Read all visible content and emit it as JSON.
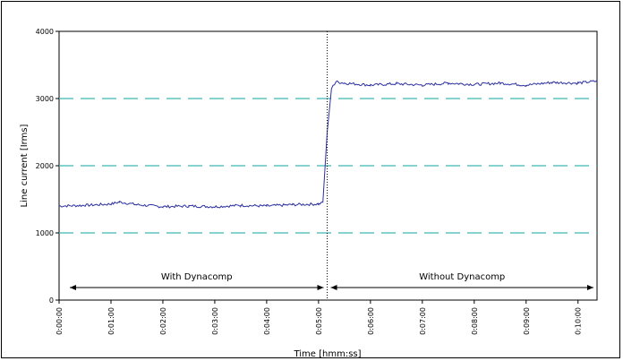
{
  "chart_data": {
    "type": "line",
    "xlabel": "Time [hmm:ss]",
    "ylabel": "Line current [Irms]",
    "ylim": [
      0,
      4000
    ],
    "xlim_seconds": [
      0,
      622
    ],
    "x_tick_labels": [
      "0:00:00",
      "0:01:00",
      "0:02:00",
      "0:03:00",
      "0:04:00",
      "0:05:00",
      "0:06:00",
      "0:07:00",
      "0:08:00",
      "0:09:00",
      "0:10:00"
    ],
    "y_ticks": [
      0,
      1000,
      2000,
      3000,
      4000
    ],
    "y_tick_labels": [
      "0",
      "1000",
      "2000",
      "3000",
      "4000"
    ],
    "grid": "dashed horizontal lines at 1000, 2000, 3000",
    "series": [
      {
        "color": "#2b2f9e",
        "x": [
          "0:00:00",
          "0:00:30",
          "0:01:00",
          "0:01:10",
          "0:01:30",
          "0:02:00",
          "0:02:30",
          "0:03:00",
          "0:03:30",
          "0:04:00",
          "0:04:30",
          "0:05:00",
          "0:05:05",
          "0:05:10",
          "0:05:15",
          "0:05:20",
          "0:05:30",
          "0:06:00",
          "0:06:30",
          "0:07:00",
          "0:07:30",
          "0:08:00",
          "0:08:30",
          "0:09:00",
          "0:09:30",
          "0:10:00",
          "0:10:22"
        ],
        "values": [
          1400,
          1410,
          1430,
          1460,
          1420,
          1390,
          1400,
          1390,
          1410,
          1400,
          1420,
          1430,
          1450,
          2500,
          3150,
          3250,
          3230,
          3200,
          3220,
          3200,
          3230,
          3210,
          3230,
          3200,
          3240,
          3230,
          3260
        ]
      }
    ],
    "divider_x": "0:05:10",
    "annotations": [
      {
        "label": "With Dynacomp",
        "from": "0:00:00",
        "to": "0:05:10"
      },
      {
        "label": "Without Dynacomp",
        "from": "0:05:10",
        "to": "0:10:22"
      }
    ],
    "colors": {
      "series": "#2b2f9e",
      "grid": "#3fb8b3",
      "divider": "#000000"
    }
  }
}
